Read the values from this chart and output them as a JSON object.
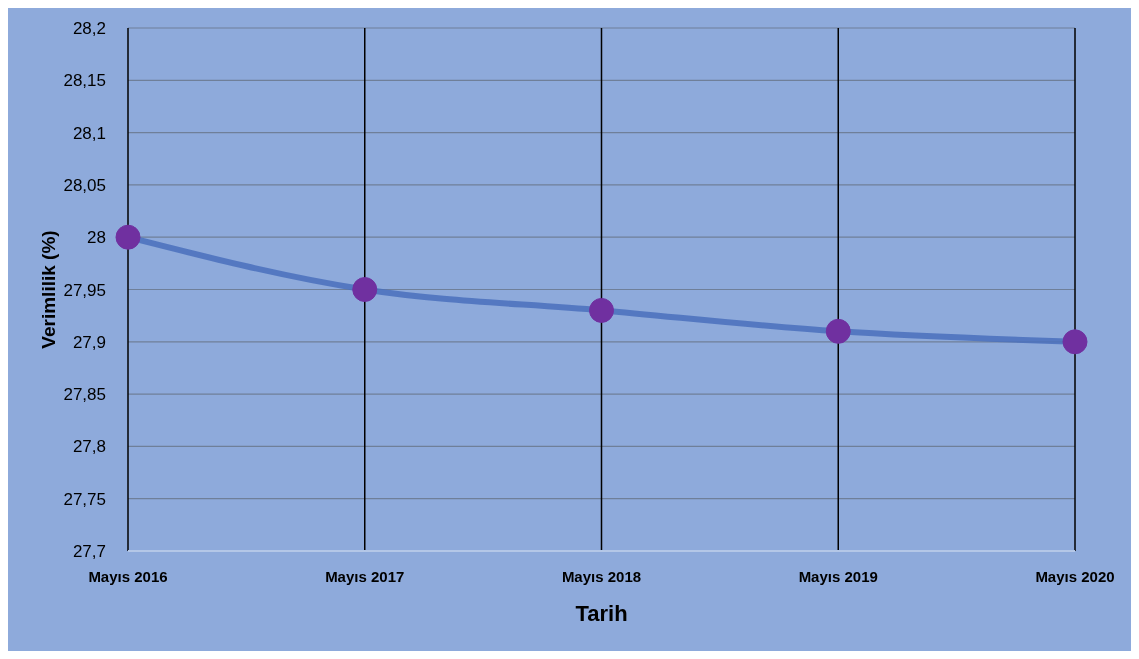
{
  "chart_data": {
    "type": "line",
    "xlabel": "Tarih",
    "ylabel": "Verimlilik (%)",
    "categories": [
      "Mayıs 2016",
      "Mayıs 2017",
      "Mayıs 2018",
      "Mayıs 2019",
      "Mayıs 2020"
    ],
    "series": [
      {
        "color": "#4a70bc",
        "colors": [
          "#7030a0",
          "#7030a0",
          "#7030a0",
          "#7030a0",
          "#7030a0"
        ],
        "values": [
          28,
          27.95,
          27.93,
          27.91,
          27.9
        ]
      }
    ],
    "ylim": [
      27.7,
      28.2
    ],
    "yticks": [
      {
        "value": 27.7,
        "label": "27,7"
      },
      {
        "value": 27.75,
        "label": "27,75"
      },
      {
        "value": 27.8,
        "label": "27,8"
      },
      {
        "value": 27.85,
        "label": "27,85"
      },
      {
        "value": 27.9,
        "label": "27,9"
      },
      {
        "value": 27.95,
        "label": "27,95"
      },
      {
        "value": 28,
        "label": "28"
      },
      {
        "value": 28.05,
        "label": "28,05"
      },
      {
        "value": 28.1,
        "label": "28,1"
      },
      {
        "value": 28.15,
        "label": "28,15"
      },
      {
        "value": 28.2,
        "label": "28,2"
      }
    ],
    "grid": true,
    "marker": "circle",
    "line_style": "solid",
    "legend": false
  }
}
